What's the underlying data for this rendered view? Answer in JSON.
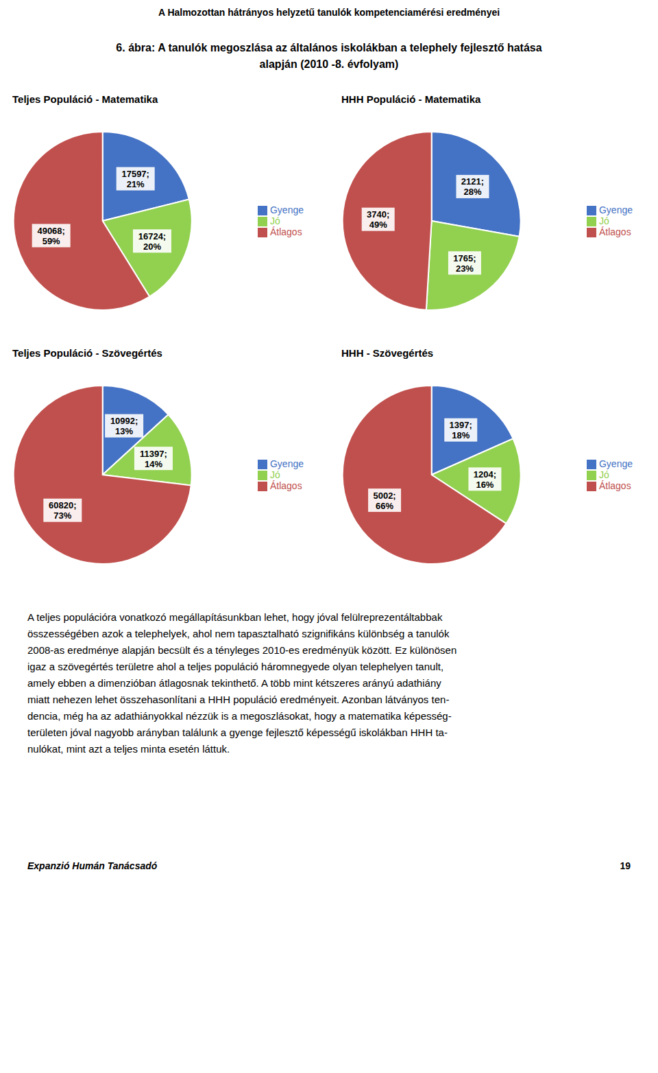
{
  "header": "A Halmozottan hátrányos helyzetű tanulók kompetenciamérési eredményei",
  "title": [
    "6.  ábra: A tanulók megoszlása az általános iskolákban a telephely fejlesztő hatása",
    "alapján (2010 -8. évfolyam)"
  ],
  "chart_data": [
    {
      "type": "pie",
      "title": "Teljes Populáció - Matematika",
      "categories": [
        "Gyenge",
        "Jó",
        "Átlagos"
      ],
      "values": [
        17597,
        16724,
        49068
      ],
      "value_labels": [
        "17597;\n21%",
        "16724;\n20%",
        "49068;\n59%"
      ],
      "colors": [
        "#4472c4",
        "#92d050",
        "#c0504d"
      ],
      "legend": "right"
    },
    {
      "type": "pie",
      "title": "HHH Populáció - Matematika",
      "categories": [
        "Gyenge",
        "Jó",
        "Átlagos"
      ],
      "values": [
        2121,
        1765,
        3740
      ],
      "value_labels": [
        "2121;\n28%",
        "1765;\n23%",
        "3740;\n49%"
      ],
      "colors": [
        "#4472c4",
        "#92d050",
        "#c0504d"
      ],
      "legend": "right"
    },
    {
      "type": "pie",
      "title": "Teljes Populáció - Szövegértés",
      "categories": [
        "Gyenge",
        "Jó",
        "Átlagos"
      ],
      "values": [
        10992,
        11397,
        60820
      ],
      "value_labels": [
        "10992;\n13%",
        "11397;\n14%",
        "60820;\n73%"
      ],
      "colors": [
        "#4472c4",
        "#92d050",
        "#c0504d"
      ],
      "legend": "right"
    },
    {
      "type": "pie",
      "title": "HHH - Szövegértés",
      "categories": [
        "Gyenge",
        "Jó",
        "Átlagos"
      ],
      "values": [
        1397,
        1204,
        5002
      ],
      "value_labels": [
        "1397;\n18%",
        "1204;\n16%",
        "5002;\n66%"
      ],
      "colors": [
        "#4472c4",
        "#92d050",
        "#c0504d"
      ],
      "legend": "right"
    }
  ],
  "body_text": [
    "A teljes populációra vonatkozó megállapításunkban lehet, hogy jóval felülreprezentáltabbak",
    "összességében azok a telephelyek, ahol nem tapasztalható szignifikáns különbség a tanulók",
    "2008-as eredménye alapján becsült és a tényleges 2010-es eredményük között. Ez különösen",
    "igaz a szövegértés területre ahol a teljes populáció háromnegyede olyan telephelyen tanult,",
    "amely ebben a dimenzióban átlagosnak tekinthető. A több mint kétszeres arányú adathiány",
    "miatt nehezen lehet összehasonlítani a HHH populáció eredményeit. Azonban látványos ten-",
    "dencia, még ha az adathiányokkal nézzük is a megoszlásokat, hogy a matematika képesség-",
    "területen jóval nagyobb arányban találunk a gyenge fejlesztő képességű iskolákban HHH ta-",
    "nulókat, mint azt a teljes minta esetén láttuk."
  ],
  "footer": [
    "Expanzió Humán Tanácsadó",
    "19"
  ]
}
